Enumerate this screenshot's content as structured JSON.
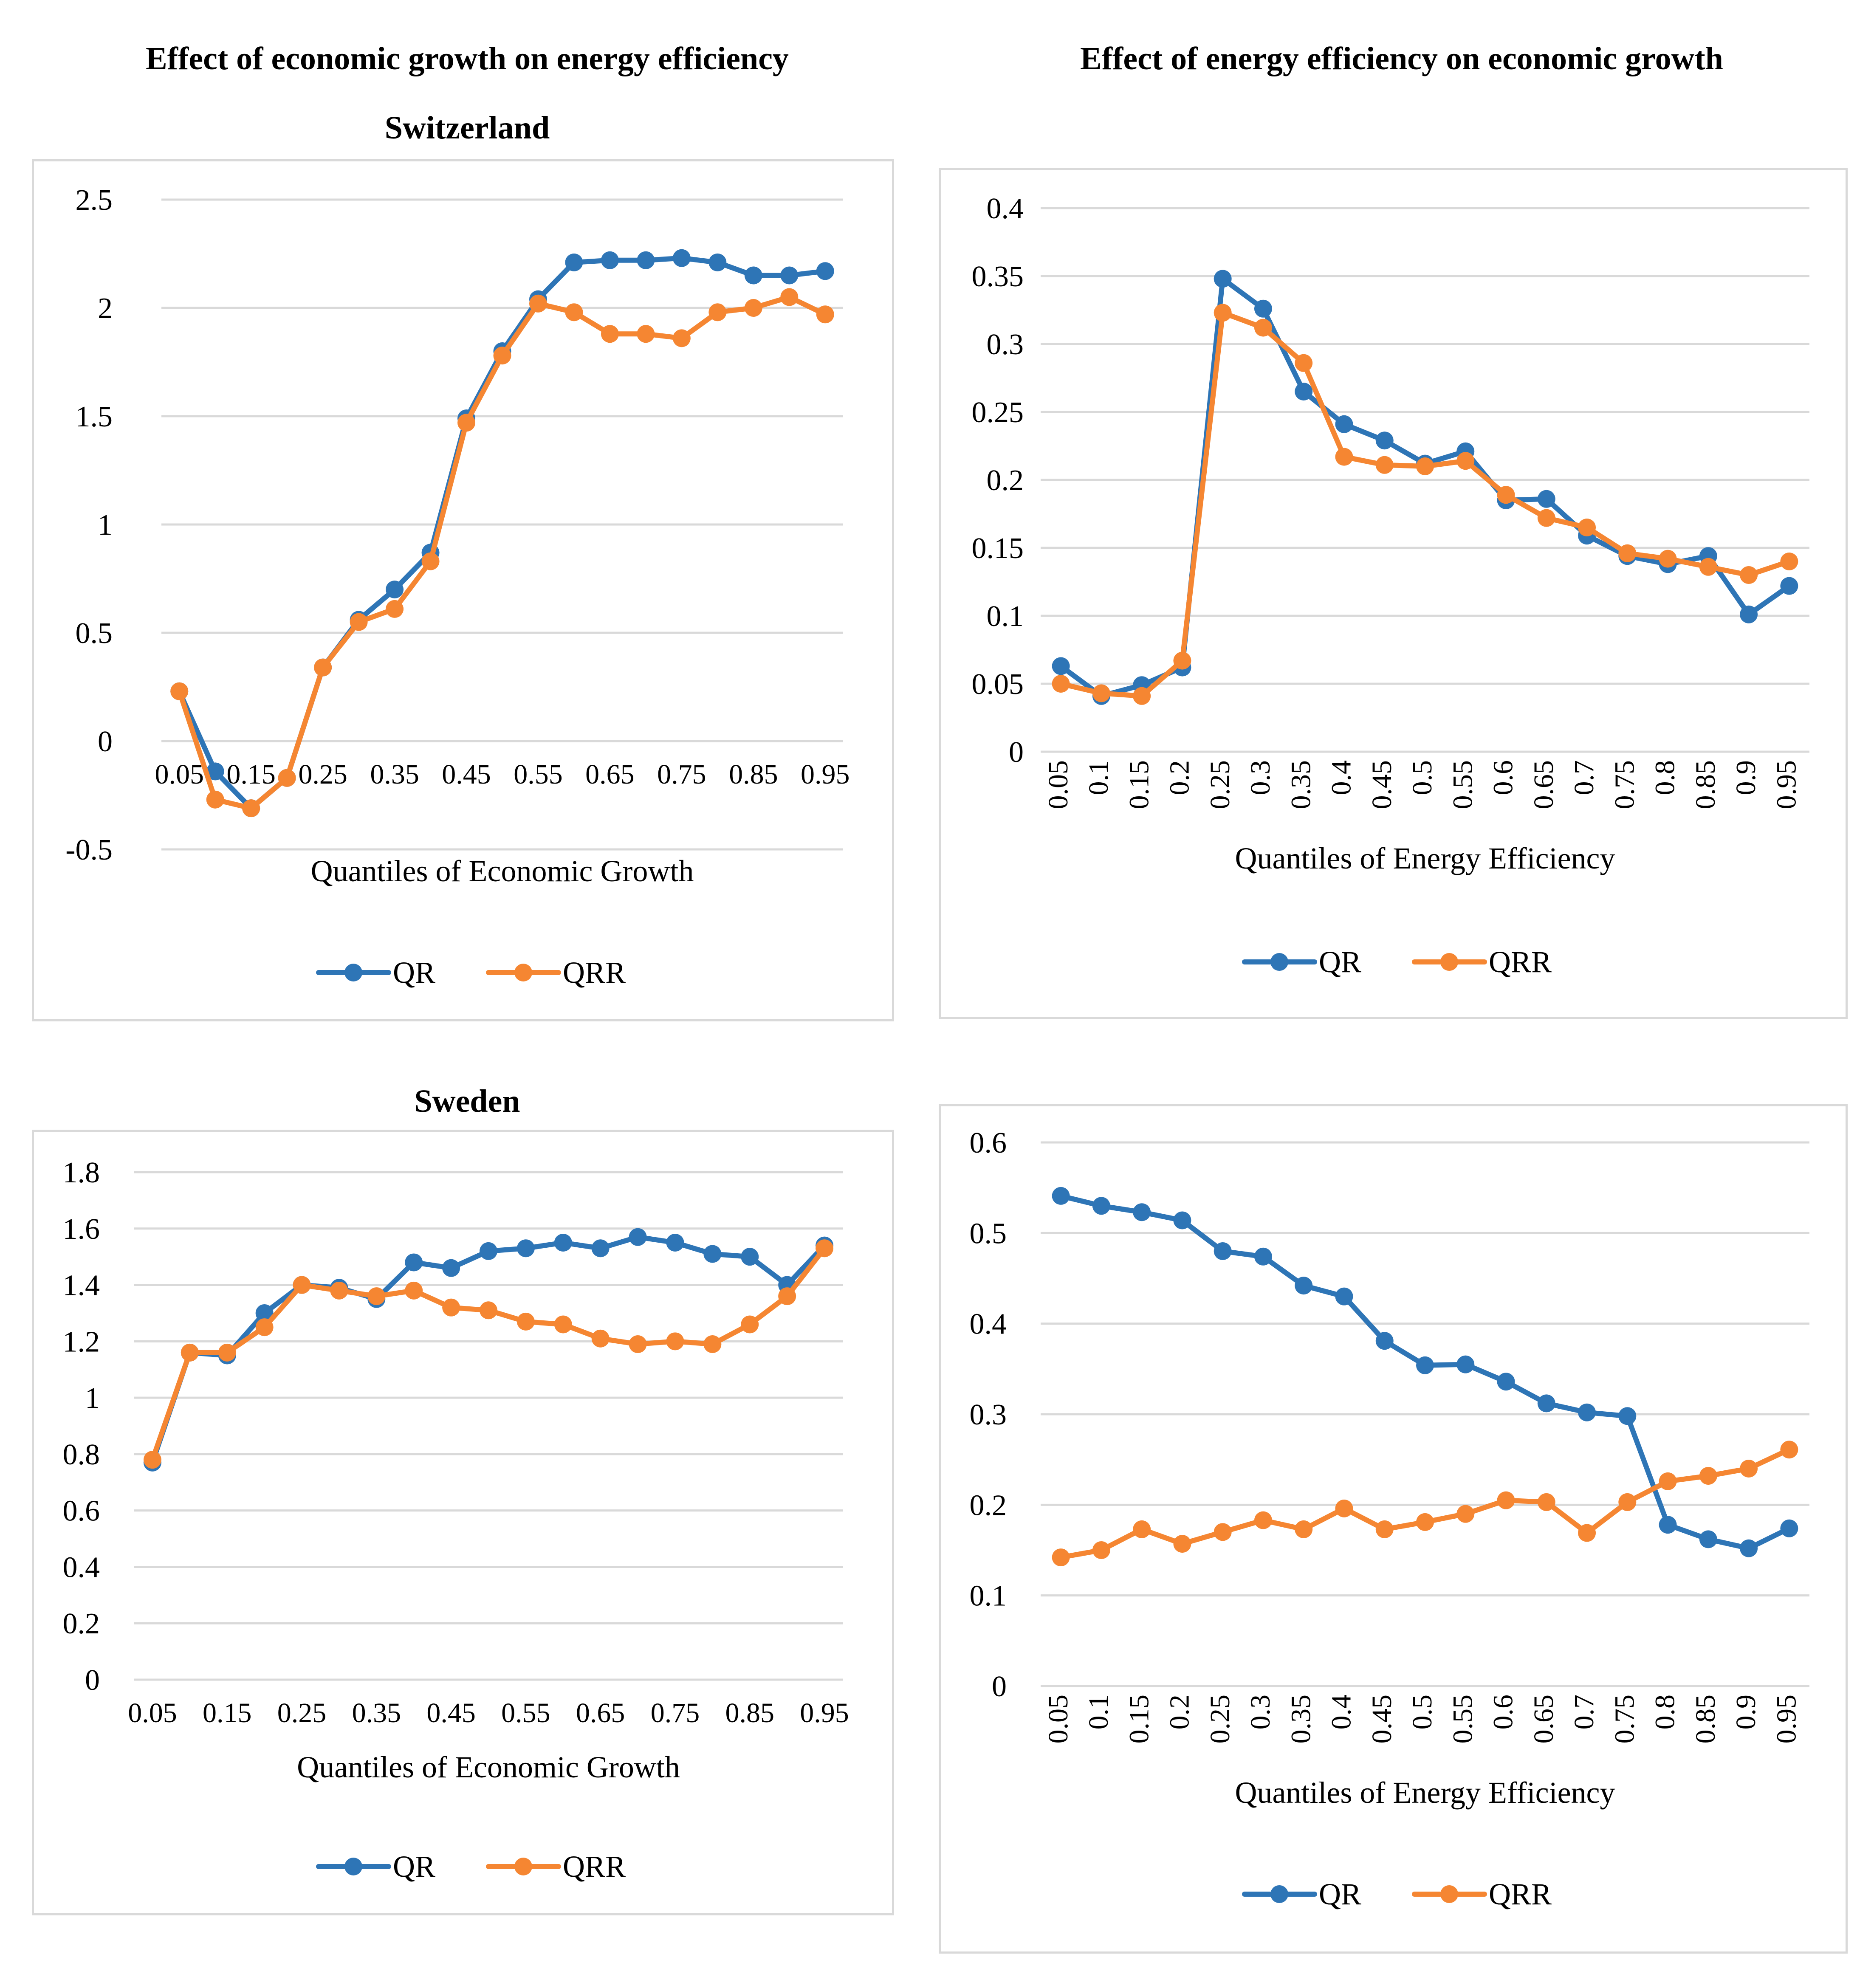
{
  "headings": {
    "left": "Effect of economic growth on energy efficiency",
    "right": "Effect of energy efficiency on economic growth",
    "switzerland": "Switzerland",
    "sweden": "Sweden"
  },
  "colors": {
    "QR": "#2e75b6",
    "QRR": "#f58632",
    "grid": "#d9d9d9",
    "panel_border": "#d9d9d9"
  },
  "chart_data": [
    {
      "id": "ch1",
      "type": "line",
      "country": "Switzerland",
      "title": "Effect of economic growth on energy efficiency",
      "xlabel": "Quantiles of Economic Growth",
      "ylabel": "",
      "categories": [
        "0.05",
        "0.1",
        "0.15",
        "0.2",
        "0.25",
        "0.3",
        "0.35",
        "0.4",
        "0.45",
        "0.5",
        "0.55",
        "0.6",
        "0.65",
        "0.7",
        "0.75",
        "0.8",
        "0.85",
        "0.9",
        "0.95"
      ],
      "x_tick_labels": [
        "0.05",
        "0.15",
        "0.25",
        "0.35",
        "0.45",
        "0.55",
        "0.65",
        "0.75",
        "0.85",
        "0.95"
      ],
      "x_tick_rotation": "horizontal",
      "ylim": [
        -0.5,
        2.5
      ],
      "yticks": [
        -0.5,
        0,
        0.5,
        1,
        1.5,
        2,
        2.5
      ],
      "ytick_labels": [
        "-0.5",
        "0",
        "0.5",
        "1",
        "1.5",
        "2",
        "2.5"
      ],
      "series": [
        {
          "name": "QR",
          "values": [
            0.23,
            -0.14,
            -0.31,
            -0.17,
            0.34,
            0.56,
            0.7,
            0.87,
            1.49,
            1.8,
            2.04,
            2.21,
            2.22,
            2.22,
            2.23,
            2.21,
            2.15,
            2.15,
            2.17
          ]
        },
        {
          "name": "QRR",
          "values": [
            0.23,
            -0.27,
            -0.31,
            -0.17,
            0.34,
            0.55,
            0.61,
            0.83,
            1.47,
            1.78,
            2.02,
            1.98,
            1.88,
            1.88,
            1.86,
            1.98,
            2.0,
            2.05,
            1.97
          ]
        }
      ],
      "legend": [
        "QR",
        "QRR"
      ],
      "legend_position": "bottom",
      "grid": true
    },
    {
      "id": "ch2",
      "type": "line",
      "country": "Switzerland",
      "title": "Effect of energy efficiency on economic growth",
      "xlabel": "Quantiles of Energy Efficiency",
      "ylabel": "",
      "categories": [
        "0.05",
        "0.1",
        "0.15",
        "0.2",
        "0.25",
        "0.3",
        "0.35",
        "0.4",
        "0.45",
        "0.5",
        "0.55",
        "0.6",
        "0.65",
        "0.7",
        "0.75",
        "0.8",
        "0.85",
        "0.9",
        "0.95"
      ],
      "x_tick_labels": [
        "0.05",
        "0.1",
        "0.15",
        "0.2",
        "0.25",
        "0.3",
        "0.35",
        "0.4",
        "0.45",
        "0.5",
        "0.55",
        "0.6",
        "0.65",
        "0.7",
        "0.75",
        "0.8",
        "0.85",
        "0.9",
        "0.95"
      ],
      "x_tick_rotation": "vertical",
      "ylim": [
        0,
        0.4
      ],
      "yticks": [
        0,
        0.05,
        0.1,
        0.15,
        0.2,
        0.25,
        0.3,
        0.35,
        0.4
      ],
      "ytick_labels": [
        "0",
        "0.05",
        "0.1",
        "0.15",
        "0.2",
        "0.25",
        "0.3",
        "0.35",
        "0.4"
      ],
      "series": [
        {
          "name": "QR",
          "values": [
            0.063,
            0.041,
            0.049,
            0.062,
            0.348,
            0.326,
            0.265,
            0.241,
            0.229,
            0.212,
            0.221,
            0.185,
            0.186,
            0.159,
            0.144,
            0.138,
            0.144,
            0.101,
            0.122
          ]
        },
        {
          "name": "QRR",
          "values": [
            0.05,
            0.043,
            0.041,
            0.067,
            0.323,
            0.312,
            0.286,
            0.217,
            0.211,
            0.21,
            0.214,
            0.189,
            0.172,
            0.165,
            0.146,
            0.142,
            0.136,
            0.13,
            0.14
          ]
        }
      ],
      "legend": [
        "QR",
        "QRR"
      ],
      "legend_position": "bottom",
      "grid": true
    },
    {
      "id": "ch3",
      "type": "line",
      "country": "Sweden",
      "title": "Effect of economic growth on energy efficiency",
      "xlabel": "Quantiles of Economic Growth",
      "ylabel": "",
      "categories": [
        "0.05",
        "0.1",
        "0.15",
        "0.2",
        "0.25",
        "0.3",
        "0.35",
        "0.4",
        "0.45",
        "0.5",
        "0.55",
        "0.6",
        "0.65",
        "0.7",
        "0.75",
        "0.8",
        "0.85",
        "0.9",
        "0.95"
      ],
      "x_tick_labels": [
        "0.05",
        "0.15",
        "0.25",
        "0.35",
        "0.45",
        "0.55",
        "0.65",
        "0.75",
        "0.85",
        "0.95"
      ],
      "x_tick_rotation": "horizontal",
      "ylim": [
        0,
        1.8
      ],
      "yticks": [
        0,
        0.2,
        0.4,
        0.6,
        0.8,
        1,
        1.2,
        1.4,
        1.6,
        1.8
      ],
      "ytick_labels": [
        "0",
        "0.2",
        "0.4",
        "0.6",
        "0.8",
        "1",
        "1.2",
        "1.4",
        "1.6",
        "1.8"
      ],
      "series": [
        {
          "name": "QR",
          "values": [
            0.77,
            1.16,
            1.15,
            1.3,
            1.4,
            1.39,
            1.35,
            1.48,
            1.46,
            1.52,
            1.53,
            1.55,
            1.53,
            1.57,
            1.55,
            1.51,
            1.5,
            1.4,
            1.54
          ]
        },
        {
          "name": "QRR",
          "values": [
            0.78,
            1.16,
            1.16,
            1.25,
            1.4,
            1.38,
            1.36,
            1.38,
            1.32,
            1.31,
            1.27,
            1.26,
            1.21,
            1.19,
            1.2,
            1.19,
            1.26,
            1.36,
            1.53
          ]
        }
      ],
      "legend": [
        "QR",
        "QRR"
      ],
      "legend_position": "bottom",
      "grid": true
    },
    {
      "id": "ch4",
      "type": "line",
      "country": "Sweden",
      "title": "Effect of energy efficiency on economic growth",
      "xlabel": "Quantiles of Energy Efficiency",
      "ylabel": "",
      "categories": [
        "0.05",
        "0.1",
        "0.15",
        "0.2",
        "0.25",
        "0.3",
        "0.35",
        "0.4",
        "0.45",
        "0.5",
        "0.55",
        "0.6",
        "0.65",
        "0.7",
        "0.75",
        "0.8",
        "0.85",
        "0.9",
        "0.95"
      ],
      "x_tick_labels": [
        "0.05",
        "0.1",
        "0.15",
        "0.2",
        "0.25",
        "0.3",
        "0.35",
        "0.4",
        "0.45",
        "0.5",
        "0.55",
        "0.6",
        "0.65",
        "0.7",
        "0.75",
        "0.8",
        "0.85",
        "0.9",
        "0.95"
      ],
      "x_tick_rotation": "vertical",
      "ylim": [
        0,
        0.6
      ],
      "yticks": [
        0,
        0.1,
        0.2,
        0.3,
        0.4,
        0.5,
        0.6
      ],
      "ytick_labels": [
        "0",
        "0.1",
        "0.2",
        "0.3",
        "0.4",
        "0.5",
        "0.6"
      ],
      "series": [
        {
          "name": "QR",
          "values": [
            0.541,
            0.53,
            0.523,
            0.514,
            0.48,
            0.474,
            0.442,
            0.43,
            0.381,
            0.354,
            0.355,
            0.336,
            0.312,
            0.302,
            0.298,
            0.178,
            0.162,
            0.152,
            0.174
          ]
        },
        {
          "name": "QRR",
          "values": [
            0.142,
            0.15,
            0.173,
            0.157,
            0.17,
            0.183,
            0.173,
            0.196,
            0.173,
            0.181,
            0.19,
            0.205,
            0.203,
            0.169,
            0.203,
            0.226,
            0.232,
            0.24,
            0.261
          ]
        }
      ],
      "legend": [
        "QR",
        "QRR"
      ],
      "legend_position": "bottom",
      "grid": true
    }
  ]
}
